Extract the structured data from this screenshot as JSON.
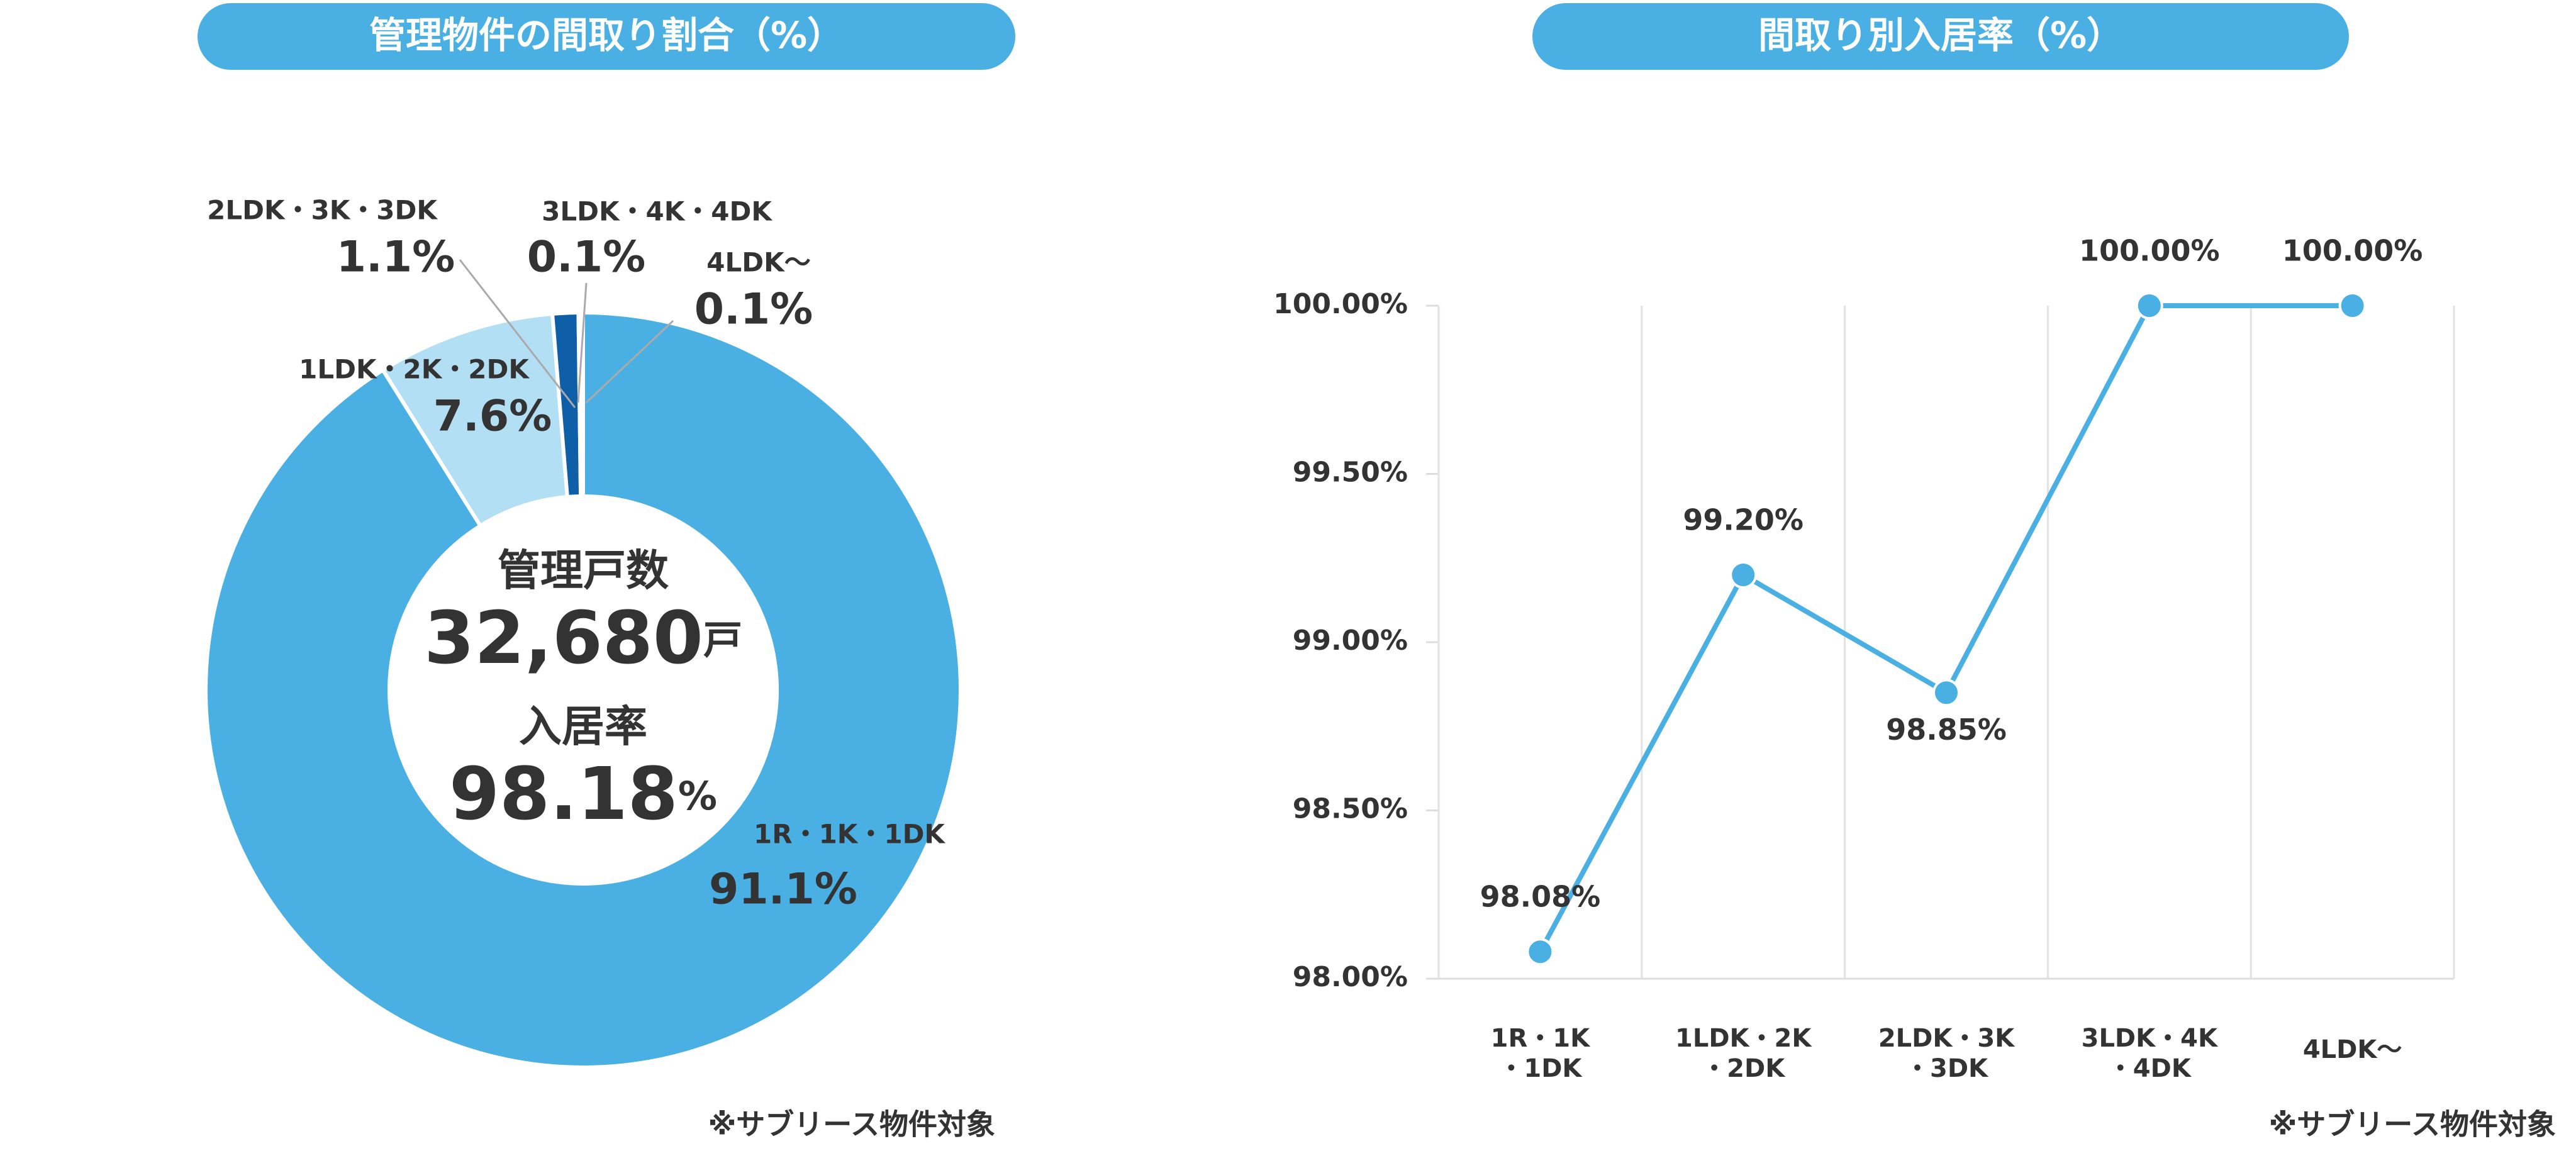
{
  "chart_data": [
    {
      "type": "pie",
      "title": "管理物件の間取り割合（%）",
      "categories": [
        "1R・1K・1DK",
        "1LDK・2K・2DK",
        "2LDK・3K・3DK",
        "3LDK・4K・4DK",
        "4LDK～"
      ],
      "values": [
        91.1,
        7.6,
        1.1,
        0.1,
        0.1
      ],
      "value_labels": [
        "91.1%",
        "7.6%",
        "1.1%",
        "0.1%",
        "0.1%"
      ],
      "colors": [
        "#4ab0e4",
        "#b3dff5",
        "#0e5fa8",
        "#1a5fa0",
        "#9fd4f0"
      ],
      "center": {
        "units_label": "管理戸数",
        "units_value": "32,680",
        "units_suffix": "戸",
        "rate_label": "入居率",
        "rate_value": "98.18",
        "rate_suffix": "%"
      },
      "note": "※サブリース物件対象"
    },
    {
      "type": "line",
      "title": "間取り別入居率（%）",
      "categories": [
        "1R・1K\n・1DK",
        "1LDK・2K\n・2DK",
        "2LDK・3K\n・3DK",
        "3LDK・4K\n・4DK",
        "4LDK～"
      ],
      "series": [
        {
          "color": "#4ab0e4",
          "values": [
            98.08,
            99.2,
            98.85,
            100,
            100
          ],
          "value_labels": [
            "98.08%",
            "99.20%",
            "98.85%",
            "100.00%",
            "100.00%"
          ]
        }
      ],
      "ylim": [
        98,
        100
      ],
      "yticks": [
        {
          "value": 98,
          "label": "98.00%"
        },
        {
          "value": 98.5,
          "label": "98.50%"
        },
        {
          "value": 99,
          "label": "99.00%"
        },
        {
          "value": 99.5,
          "label": "99.50%"
        },
        {
          "value": 100,
          "label": "100.00%"
        }
      ],
      "grid": true,
      "note": "※サブリース物件対象"
    }
  ]
}
